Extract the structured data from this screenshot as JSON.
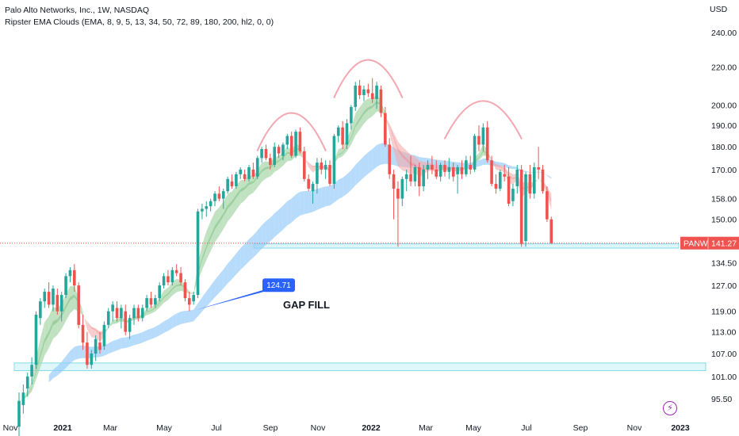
{
  "header": {
    "title": "Palo Alto Networks, Inc., 1W, NASDAQ",
    "indicator": "Ripster EMA Clouds (EMA, 8, 9, 5, 13, 34, 50, 72, 89, 180, 200, hl2, 0, 0)"
  },
  "currency_label": "USD",
  "price_tag": {
    "symbol": "PANW",
    "price": "141.27"
  },
  "annotation": {
    "callout": "124.71",
    "text": "GAP FILL"
  },
  "colors": {
    "up": "#26a69a",
    "down": "#ef5350",
    "cloud_green": "#a5d6a7",
    "cloud_red": "#f8bbbb",
    "cloud_blue": "#90caf9",
    "zone": "#80deea",
    "arc": "#f4a7b0",
    "callout": "#2962ff"
  },
  "chart_data": {
    "type": "candlestick",
    "title": "Palo Alto Networks, Inc., 1W, NASDAQ",
    "y_axis_ticks": [
      "240.00",
      "220.00",
      "200.00",
      "190.00",
      "180.00",
      "170.00",
      "158.00",
      "150.00",
      "141.27",
      "134.50",
      "127.00",
      "119.00",
      "113.00",
      "107.00",
      "101.00",
      "95.50"
    ],
    "x_axis_ticks": [
      "Nov",
      "2021",
      "Mar",
      "May",
      "Jul",
      "Sep",
      "Nov",
      "2022",
      "Mar",
      "May",
      "Jul",
      "Sep",
      "Nov",
      "2023"
    ],
    "last_price": 141.27,
    "gap_fill_level": 124.71,
    "support_zones": [
      [
        139.5,
        141.0
      ],
      [
        102.5,
        104.5
      ]
    ],
    "candles": [
      {
        "o": 89,
        "h": 97,
        "l": 85,
        "c": 95
      },
      {
        "o": 94,
        "h": 99,
        "l": 92,
        "c": 97
      },
      {
        "o": 98,
        "h": 102,
        "l": 96,
        "c": 101
      },
      {
        "o": 101,
        "h": 106,
        "l": 99,
        "c": 104
      },
      {
        "o": 104,
        "h": 119,
        "l": 103,
        "c": 118
      },
      {
        "o": 117,
        "h": 123,
        "l": 115,
        "c": 122
      },
      {
        "o": 122,
        "h": 126,
        "l": 120,
        "c": 125
      },
      {
        "o": 125,
        "h": 128,
        "l": 120,
        "c": 121
      },
      {
        "o": 121,
        "h": 127,
        "l": 119,
        "c": 126
      },
      {
        "o": 124,
        "h": 126,
        "l": 118,
        "c": 119
      },
      {
        "o": 119,
        "h": 125,
        "l": 116,
        "c": 124
      },
      {
        "o": 124,
        "h": 131,
        "l": 123,
        "c": 130
      },
      {
        "o": 130,
        "h": 133,
        "l": 128,
        "c": 132
      },
      {
        "o": 132,
        "h": 134,
        "l": 125,
        "c": 127
      },
      {
        "o": 127,
        "h": 128,
        "l": 114,
        "c": 115
      },
      {
        "o": 115,
        "h": 118,
        "l": 108,
        "c": 110
      },
      {
        "o": 110,
        "h": 113,
        "l": 103,
        "c": 104
      },
      {
        "o": 104,
        "h": 108,
        "l": 103,
        "c": 107
      },
      {
        "o": 107,
        "h": 112,
        "l": 105,
        "c": 111
      },
      {
        "o": 110,
        "h": 113,
        "l": 107,
        "c": 108
      },
      {
        "o": 109,
        "h": 116,
        "l": 108,
        "c": 115
      },
      {
        "o": 115,
        "h": 120,
        "l": 114,
        "c": 119
      },
      {
        "o": 119,
        "h": 122,
        "l": 116,
        "c": 121
      },
      {
        "o": 120,
        "h": 122,
        "l": 116,
        "c": 117
      },
      {
        "o": 117,
        "h": 121,
        "l": 114,
        "c": 120
      },
      {
        "o": 119,
        "h": 121,
        "l": 112,
        "c": 113
      },
      {
        "o": 113,
        "h": 118,
        "l": 111,
        "c": 117
      },
      {
        "o": 117,
        "h": 121,
        "l": 115,
        "c": 120
      },
      {
        "o": 120,
        "h": 121,
        "l": 116,
        "c": 117
      },
      {
        "o": 117,
        "h": 121,
        "l": 116,
        "c": 120
      },
      {
        "o": 120,
        "h": 124,
        "l": 119,
        "c": 123
      },
      {
        "o": 123,
        "h": 125,
        "l": 120,
        "c": 121
      },
      {
        "o": 121,
        "h": 124,
        "l": 120,
        "c": 123
      },
      {
        "o": 123,
        "h": 128,
        "l": 122,
        "c": 127
      },
      {
        "o": 127,
        "h": 131,
        "l": 126,
        "c": 130
      },
      {
        "o": 130,
        "h": 132,
        "l": 127,
        "c": 128
      },
      {
        "o": 128,
        "h": 133,
        "l": 127,
        "c": 132
      },
      {
        "o": 132,
        "h": 134,
        "l": 130,
        "c": 131
      },
      {
        "o": 131,
        "h": 133,
        "l": 127,
        "c": 128
      },
      {
        "o": 128,
        "h": 129,
        "l": 122,
        "c": 123
      },
      {
        "o": 123,
        "h": 125,
        "l": 119,
        "c": 121
      },
      {
        "o": 122,
        "h": 125,
        "l": 121,
        "c": 124
      },
      {
        "o": 124,
        "h": 154,
        "l": 123,
        "c": 153
      },
      {
        "o": 153,
        "h": 156,
        "l": 150,
        "c": 154
      },
      {
        "o": 154,
        "h": 157,
        "l": 151,
        "c": 155
      },
      {
        "o": 155,
        "h": 158,
        "l": 153,
        "c": 157
      },
      {
        "o": 157,
        "h": 161,
        "l": 155,
        "c": 160
      },
      {
        "o": 160,
        "h": 163,
        "l": 157,
        "c": 158
      },
      {
        "o": 158,
        "h": 162,
        "l": 154,
        "c": 161
      },
      {
        "o": 161,
        "h": 167,
        "l": 160,
        "c": 166
      },
      {
        "o": 165,
        "h": 168,
        "l": 162,
        "c": 163
      },
      {
        "o": 163,
        "h": 169,
        "l": 162,
        "c": 168
      },
      {
        "o": 168,
        "h": 171,
        "l": 166,
        "c": 170
      },
      {
        "o": 168,
        "h": 170,
        "l": 165,
        "c": 166
      },
      {
        "o": 166,
        "h": 172,
        "l": 165,
        "c": 171
      },
      {
        "o": 170,
        "h": 173,
        "l": 166,
        "c": 167
      },
      {
        "o": 167,
        "h": 176,
        "l": 166,
        "c": 175
      },
      {
        "o": 175,
        "h": 180,
        "l": 173,
        "c": 179
      },
      {
        "o": 179,
        "h": 181,
        "l": 174,
        "c": 175
      },
      {
        "o": 175,
        "h": 177,
        "l": 170,
        "c": 172
      },
      {
        "o": 172,
        "h": 182,
        "l": 171,
        "c": 180
      },
      {
        "o": 180,
        "h": 181,
        "l": 175,
        "c": 177
      },
      {
        "o": 176,
        "h": 182,
        "l": 174,
        "c": 181
      },
      {
        "o": 181,
        "h": 186,
        "l": 179,
        "c": 185
      },
      {
        "o": 185,
        "h": 187,
        "l": 175,
        "c": 176
      },
      {
        "o": 176,
        "h": 188,
        "l": 175,
        "c": 187
      },
      {
        "o": 187,
        "h": 189,
        "l": 177,
        "c": 178
      },
      {
        "o": 178,
        "h": 180,
        "l": 165,
        "c": 166
      },
      {
        "o": 166,
        "h": 168,
        "l": 161,
        "c": 162
      },
      {
        "o": 161,
        "h": 165,
        "l": 156,
        "c": 164
      },
      {
        "o": 164,
        "h": 175,
        "l": 160,
        "c": 173
      },
      {
        "o": 173,
        "h": 175,
        "l": 168,
        "c": 170
      },
      {
        "o": 170,
        "h": 174,
        "l": 166,
        "c": 172
      },
      {
        "o": 172,
        "h": 174,
        "l": 163,
        "c": 164
      },
      {
        "o": 164,
        "h": 186,
        "l": 162,
        "c": 185
      },
      {
        "o": 185,
        "h": 190,
        "l": 182,
        "c": 189
      },
      {
        "o": 189,
        "h": 192,
        "l": 179,
        "c": 181
      },
      {
        "o": 181,
        "h": 193,
        "l": 179,
        "c": 191
      },
      {
        "o": 191,
        "h": 200,
        "l": 188,
        "c": 199
      },
      {
        "o": 199,
        "h": 212,
        "l": 197,
        "c": 210
      },
      {
        "o": 210,
        "h": 213,
        "l": 203,
        "c": 205
      },
      {
        "o": 205,
        "h": 210,
        "l": 202,
        "c": 208
      },
      {
        "o": 208,
        "h": 211,
        "l": 204,
        "c": 206
      },
      {
        "o": 206,
        "h": 214,
        "l": 201,
        "c": 203
      },
      {
        "o": 203,
        "h": 212,
        "l": 198,
        "c": 210
      },
      {
        "o": 208,
        "h": 210,
        "l": 194,
        "c": 196
      },
      {
        "o": 196,
        "h": 199,
        "l": 180,
        "c": 181
      },
      {
        "o": 181,
        "h": 184,
        "l": 166,
        "c": 168
      },
      {
        "o": 168,
        "h": 170,
        "l": 150,
        "c": 162
      },
      {
        "o": 162,
        "h": 165,
        "l": 140,
        "c": 158
      },
      {
        "o": 158,
        "h": 167,
        "l": 155,
        "c": 166
      },
      {
        "o": 166,
        "h": 170,
        "l": 161,
        "c": 168
      },
      {
        "o": 168,
        "h": 176,
        "l": 163,
        "c": 165
      },
      {
        "o": 165,
        "h": 172,
        "l": 163,
        "c": 171
      },
      {
        "o": 171,
        "h": 173,
        "l": 159,
        "c": 163
      },
      {
        "o": 163,
        "h": 172,
        "l": 161,
        "c": 170
      },
      {
        "o": 170,
        "h": 174,
        "l": 166,
        "c": 172
      },
      {
        "o": 172,
        "h": 176,
        "l": 168,
        "c": 170
      },
      {
        "o": 170,
        "h": 174,
        "l": 166,
        "c": 167
      },
      {
        "o": 167,
        "h": 173,
        "l": 165,
        "c": 172
      },
      {
        "o": 172,
        "h": 174,
        "l": 167,
        "c": 169
      },
      {
        "o": 169,
        "h": 175,
        "l": 166,
        "c": 171
      },
      {
        "o": 171,
        "h": 173,
        "l": 165,
        "c": 167
      },
      {
        "o": 168,
        "h": 172,
        "l": 160,
        "c": 171
      },
      {
        "o": 171,
        "h": 174,
        "l": 166,
        "c": 168
      },
      {
        "o": 168,
        "h": 176,
        "l": 167,
        "c": 174
      },
      {
        "o": 172,
        "h": 176,
        "l": 168,
        "c": 170
      },
      {
        "o": 170,
        "h": 186,
        "l": 169,
        "c": 185
      },
      {
        "o": 185,
        "h": 190,
        "l": 178,
        "c": 181
      },
      {
        "o": 181,
        "h": 191,
        "l": 178,
        "c": 189
      },
      {
        "o": 189,
        "h": 192,
        "l": 173,
        "c": 174
      },
      {
        "o": 174,
        "h": 176,
        "l": 163,
        "c": 164
      },
      {
        "o": 164,
        "h": 168,
        "l": 160,
        "c": 162
      },
      {
        "o": 162,
        "h": 170,
        "l": 161,
        "c": 169
      },
      {
        "o": 168,
        "h": 172,
        "l": 165,
        "c": 167
      },
      {
        "o": 167,
        "h": 171,
        "l": 155,
        "c": 156
      },
      {
        "o": 157,
        "h": 164,
        "l": 155,
        "c": 162
      },
      {
        "o": 163,
        "h": 172,
        "l": 160,
        "c": 170
      },
      {
        "o": 170,
        "h": 172,
        "l": 140,
        "c": 141
      },
      {
        "o": 142,
        "h": 169,
        "l": 140,
        "c": 168
      },
      {
        "o": 168,
        "h": 172,
        "l": 158,
        "c": 160
      },
      {
        "o": 160,
        "h": 173,
        "l": 158,
        "c": 171
      },
      {
        "o": 171,
        "h": 180,
        "l": 166,
        "c": 170
      },
      {
        "o": 170,
        "h": 172,
        "l": 160,
        "c": 161
      },
      {
        "o": 161,
        "h": 163,
        "l": 149,
        "c": 150
      },
      {
        "o": 150,
        "h": 151,
        "l": 141,
        "c": 141.27
      }
    ],
    "arcs": [
      {
        "label": "left shoulder",
        "x_start_week": 56,
        "x_end_week": 72,
        "peak": 196
      },
      {
        "label": "head",
        "x_start_week": 74,
        "x_end_week": 90,
        "peak": 224
      },
      {
        "label": "right shoulder",
        "x_start_week": 100,
        "x_end_week": 118,
        "peak": 202
      }
    ]
  }
}
